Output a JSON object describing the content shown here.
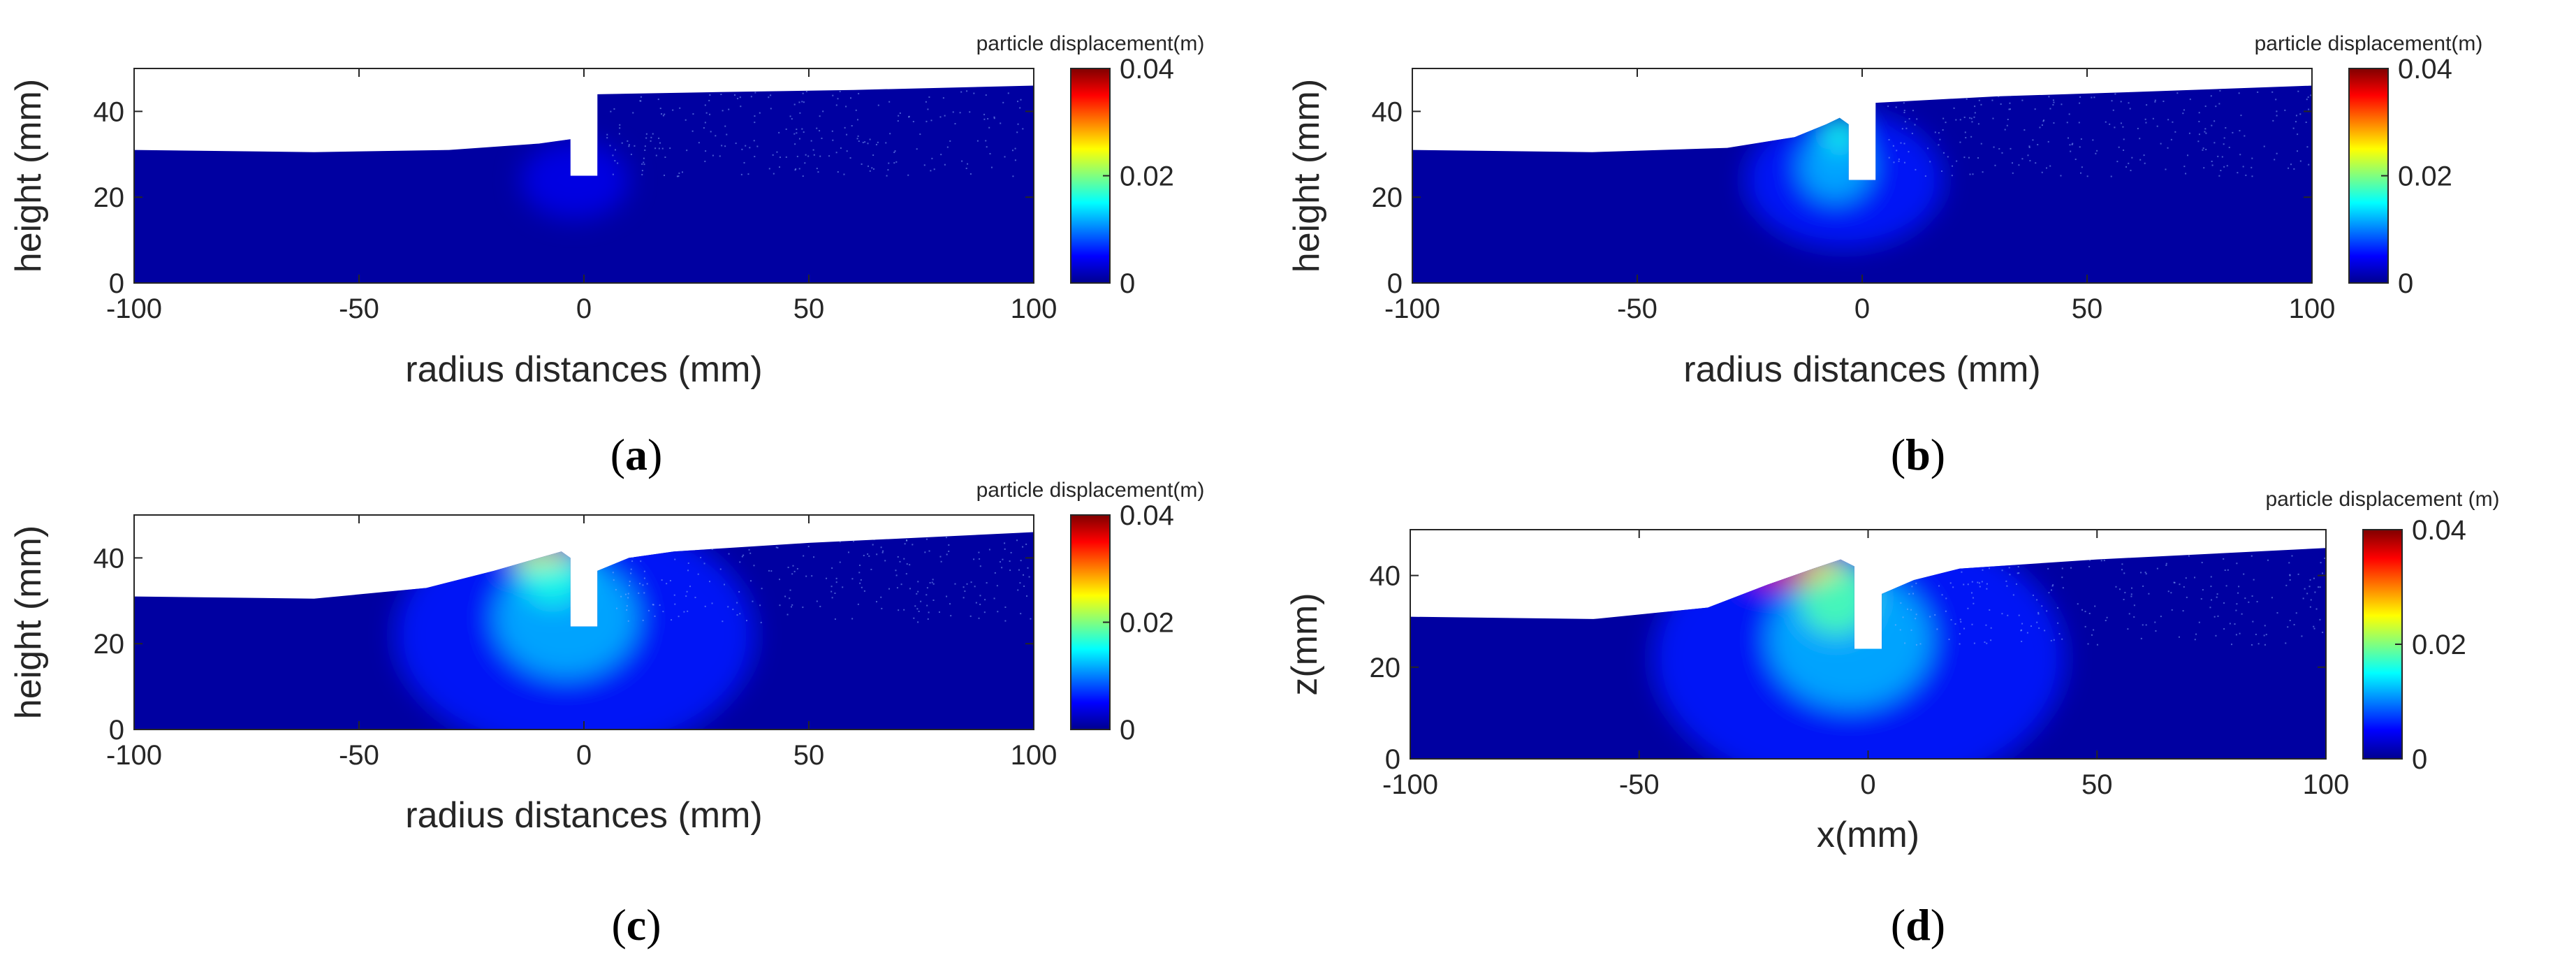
{
  "figure_captions": [
    "(a)",
    "(b)",
    "(c)",
    "(d)"
  ],
  "colormap": "jet",
  "colormap_stops": [
    "#00008f",
    "#0000ff",
    "#00ffff",
    "#ffff00",
    "#ff0000",
    "#800000"
  ],
  "background_color": "#ffffff",
  "chart_data": [
    {
      "type": "heatmap",
      "panel": "a",
      "xlabel": "radius distances (mm)",
      "ylabel": "height (mm)",
      "xlim": [
        -100,
        100
      ],
      "ylim": [
        0,
        50
      ],
      "xticks": [
        "-100",
        "-50",
        "0",
        "50",
        "100"
      ],
      "yticks": [
        "0",
        "20",
        "40"
      ],
      "colorbar": {
        "title": "particle displacement(m)",
        "ticks": [
          "0",
          "0.02",
          "0.04"
        ],
        "range": [
          0,
          0.04
        ]
      },
      "surface_left": [
        [
          -100,
          31
        ],
        [
          -60,
          30.5
        ],
        [
          -30,
          31
        ],
        [
          -10,
          32.5
        ],
        [
          -3,
          33.5
        ]
      ],
      "surface_right": [
        [
          3,
          44
        ],
        [
          30,
          44.5
        ],
        [
          60,
          45
        ],
        [
          100,
          46
        ]
      ],
      "cavity": {
        "x": [
          -3,
          3
        ],
        "bottom": 25
      },
      "highlights": [
        {
          "x": -2,
          "y": 24,
          "rx": 12,
          "ry": 9,
          "value": 0.004
        }
      ]
    },
    {
      "type": "heatmap",
      "panel": "b",
      "xlabel": "radius distances (mm)",
      "ylabel": "height (mm)",
      "xlim": [
        -100,
        100
      ],
      "ylim": [
        0,
        50
      ],
      "xticks": [
        "-100",
        "-50",
        "0",
        "50",
        "100"
      ],
      "yticks": [
        "0",
        "20",
        "40"
      ],
      "colorbar": {
        "title": "particle displacement(m)",
        "ticks": [
          "0",
          "0.02",
          "0.04"
        ],
        "range": [
          0,
          0.04
        ]
      },
      "surface_left": [
        [
          -100,
          31
        ],
        [
          -60,
          30.5
        ],
        [
          -30,
          31.5
        ],
        [
          -15,
          34
        ],
        [
          -8,
          37
        ],
        [
          -5,
          38.5
        ],
        [
          -3,
          37
        ]
      ],
      "surface_right": [
        [
          3,
          42
        ],
        [
          30,
          43.5
        ],
        [
          60,
          44.5
        ],
        [
          100,
          46
        ]
      ],
      "cavity": {
        "x": [
          -3,
          3
        ],
        "bottom": 24
      },
      "highlights": [
        {
          "x": -4,
          "y": 24,
          "rx": 22,
          "ry": 16,
          "value": 0.006
        },
        {
          "x": -6,
          "y": 27,
          "rx": 8,
          "ry": 8,
          "value": 0.012
        },
        {
          "x": -5,
          "y": 35,
          "rx": 4,
          "ry": 4,
          "value": 0.016
        }
      ]
    },
    {
      "type": "heatmap",
      "panel": "c",
      "xlabel": "radius distances (mm)",
      "ylabel": "height (mm)",
      "xlim": [
        -100,
        100
      ],
      "ylim": [
        0,
        50
      ],
      "xticks": [
        "-100",
        "-50",
        "0",
        "50",
        "100"
      ],
      "yticks": [
        "0",
        "20",
        "40"
      ],
      "colorbar": {
        "title": "particle displacement(m)",
        "ticks": [
          "0",
          "0.02",
          "0.04"
        ],
        "range": [
          0,
          0.04
        ]
      },
      "surface_left": [
        [
          -100,
          31
        ],
        [
          -60,
          30.5
        ],
        [
          -35,
          33
        ],
        [
          -20,
          37
        ],
        [
          -10,
          40
        ],
        [
          -5,
          41.5
        ],
        [
          -3,
          40
        ]
      ],
      "surface_right": [
        [
          3,
          37
        ],
        [
          10,
          40
        ],
        [
          20,
          41.5
        ],
        [
          50,
          43.5
        ],
        [
          100,
          46
        ]
      ],
      "cavity": {
        "x": [
          -3,
          3
        ],
        "bottom": 24
      },
      "highlights": [
        {
          "x": -2,
          "y": 22,
          "rx": 40,
          "ry": 28,
          "value": 0.006
        },
        {
          "x": -4,
          "y": 26,
          "rx": 16,
          "ry": 14,
          "value": 0.012
        },
        {
          "x": -7,
          "y": 36,
          "rx": 7,
          "ry": 7,
          "value": 0.016
        },
        {
          "x": -12,
          "y": 40,
          "rx": 5,
          "ry": 2,
          "value": 0.024
        },
        {
          "x": -6,
          "y": 41,
          "rx": 3,
          "ry": 2,
          "value": 0.028
        }
      ]
    },
    {
      "type": "heatmap",
      "panel": "d",
      "xlabel": "x(mm)",
      "ylabel": "z(mm)",
      "xlim": [
        -100,
        100
      ],
      "ylim": [
        0,
        50
      ],
      "xticks": [
        "-100",
        "-50",
        "0",
        "50",
        "100"
      ],
      "yticks": [
        "0",
        "20",
        "40"
      ],
      "colorbar": {
        "title": "particle displacement (m)",
        "ticks": [
          "0",
          "0.02",
          "0.04"
        ],
        "range": [
          0,
          0.04
        ]
      },
      "surface_left": [
        [
          -100,
          31
        ],
        [
          -60,
          30.5
        ],
        [
          -35,
          33
        ],
        [
          -22,
          38
        ],
        [
          -12,
          41.5
        ],
        [
          -6,
          43.5
        ],
        [
          -3,
          42
        ]
      ],
      "surface_right": [
        [
          3,
          36
        ],
        [
          10,
          39
        ],
        [
          20,
          41.5
        ],
        [
          50,
          43.5
        ],
        [
          100,
          46
        ]
      ],
      "cavity": {
        "x": [
          -3,
          3
        ],
        "bottom": 24
      },
      "highlights": [
        {
          "x": -2,
          "y": 22,
          "rx": 45,
          "ry": 30,
          "value": 0.006
        },
        {
          "x": -4,
          "y": 26,
          "rx": 18,
          "ry": 15,
          "value": 0.012
        },
        {
          "x": -7,
          "y": 35,
          "rx": 8,
          "ry": 8,
          "value": 0.018
        },
        {
          "x": -18,
          "y": 40,
          "rx": 8,
          "ry": 2,
          "value": 0.034
        },
        {
          "x": -10,
          "y": 42,
          "rx": 5,
          "ry": 2,
          "value": 0.026
        }
      ]
    }
  ]
}
